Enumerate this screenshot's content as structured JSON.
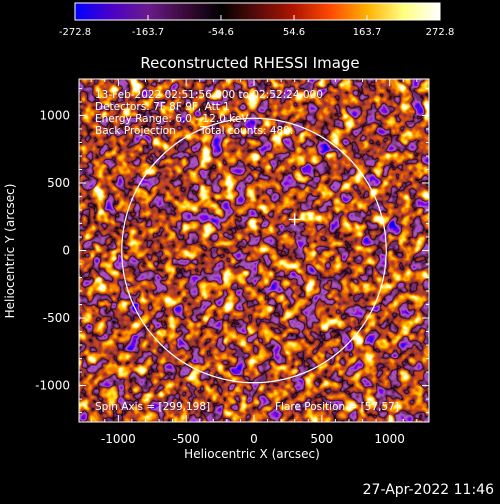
{
  "chart_data": {
    "type": "heatmap",
    "title": "Reconstructed RHESSI Image",
    "xlabel": "Heliocentric X (arcsec)",
    "ylabel": "Heliocentric Y (arcsec)",
    "xlim": [
      -1290,
      1290
    ],
    "ylim": [
      -1270,
      1270
    ],
    "xticks": [
      -1000,
      -500,
      0,
      500,
      1000
    ],
    "yticks": [
      -1000,
      -500,
      0,
      500,
      1000
    ],
    "colorbar": {
      "range": [
        -272.8,
        272.8
      ],
      "ticks": [
        -272.8,
        -163.7,
        -54.6,
        54.6,
        163.7,
        272.8
      ],
      "colors": [
        "#0000ff",
        "#4b00c8",
        "#6a1b8c",
        "#3a0a3a",
        "#000000",
        "#5a0a0a",
        "#b01500",
        "#ff4a00",
        "#ffb000",
        "#ffff80",
        "#ffffff"
      ]
    },
    "solar_disk": {
      "center": [
        0,
        0
      ],
      "radius": 975
    },
    "flare_marker": {
      "x": 300,
      "y": 230
    },
    "annotations": {
      "time": "13-Feb-2022 02:51:56.000 to 02:52:24.000",
      "detectors": "Detectors: 7F 8F 9F, Att 1",
      "energy": "Energy Range: 6.0 - 12.0 keV",
      "method": "Back Projection",
      "counts": "Total counts: 489.",
      "spin_axis": "Spin Axis = [299,198]",
      "flare_position": "Flare Position = [57,57]"
    }
  },
  "footer": {
    "timestamp": "27-Apr-2022 11:46"
  }
}
